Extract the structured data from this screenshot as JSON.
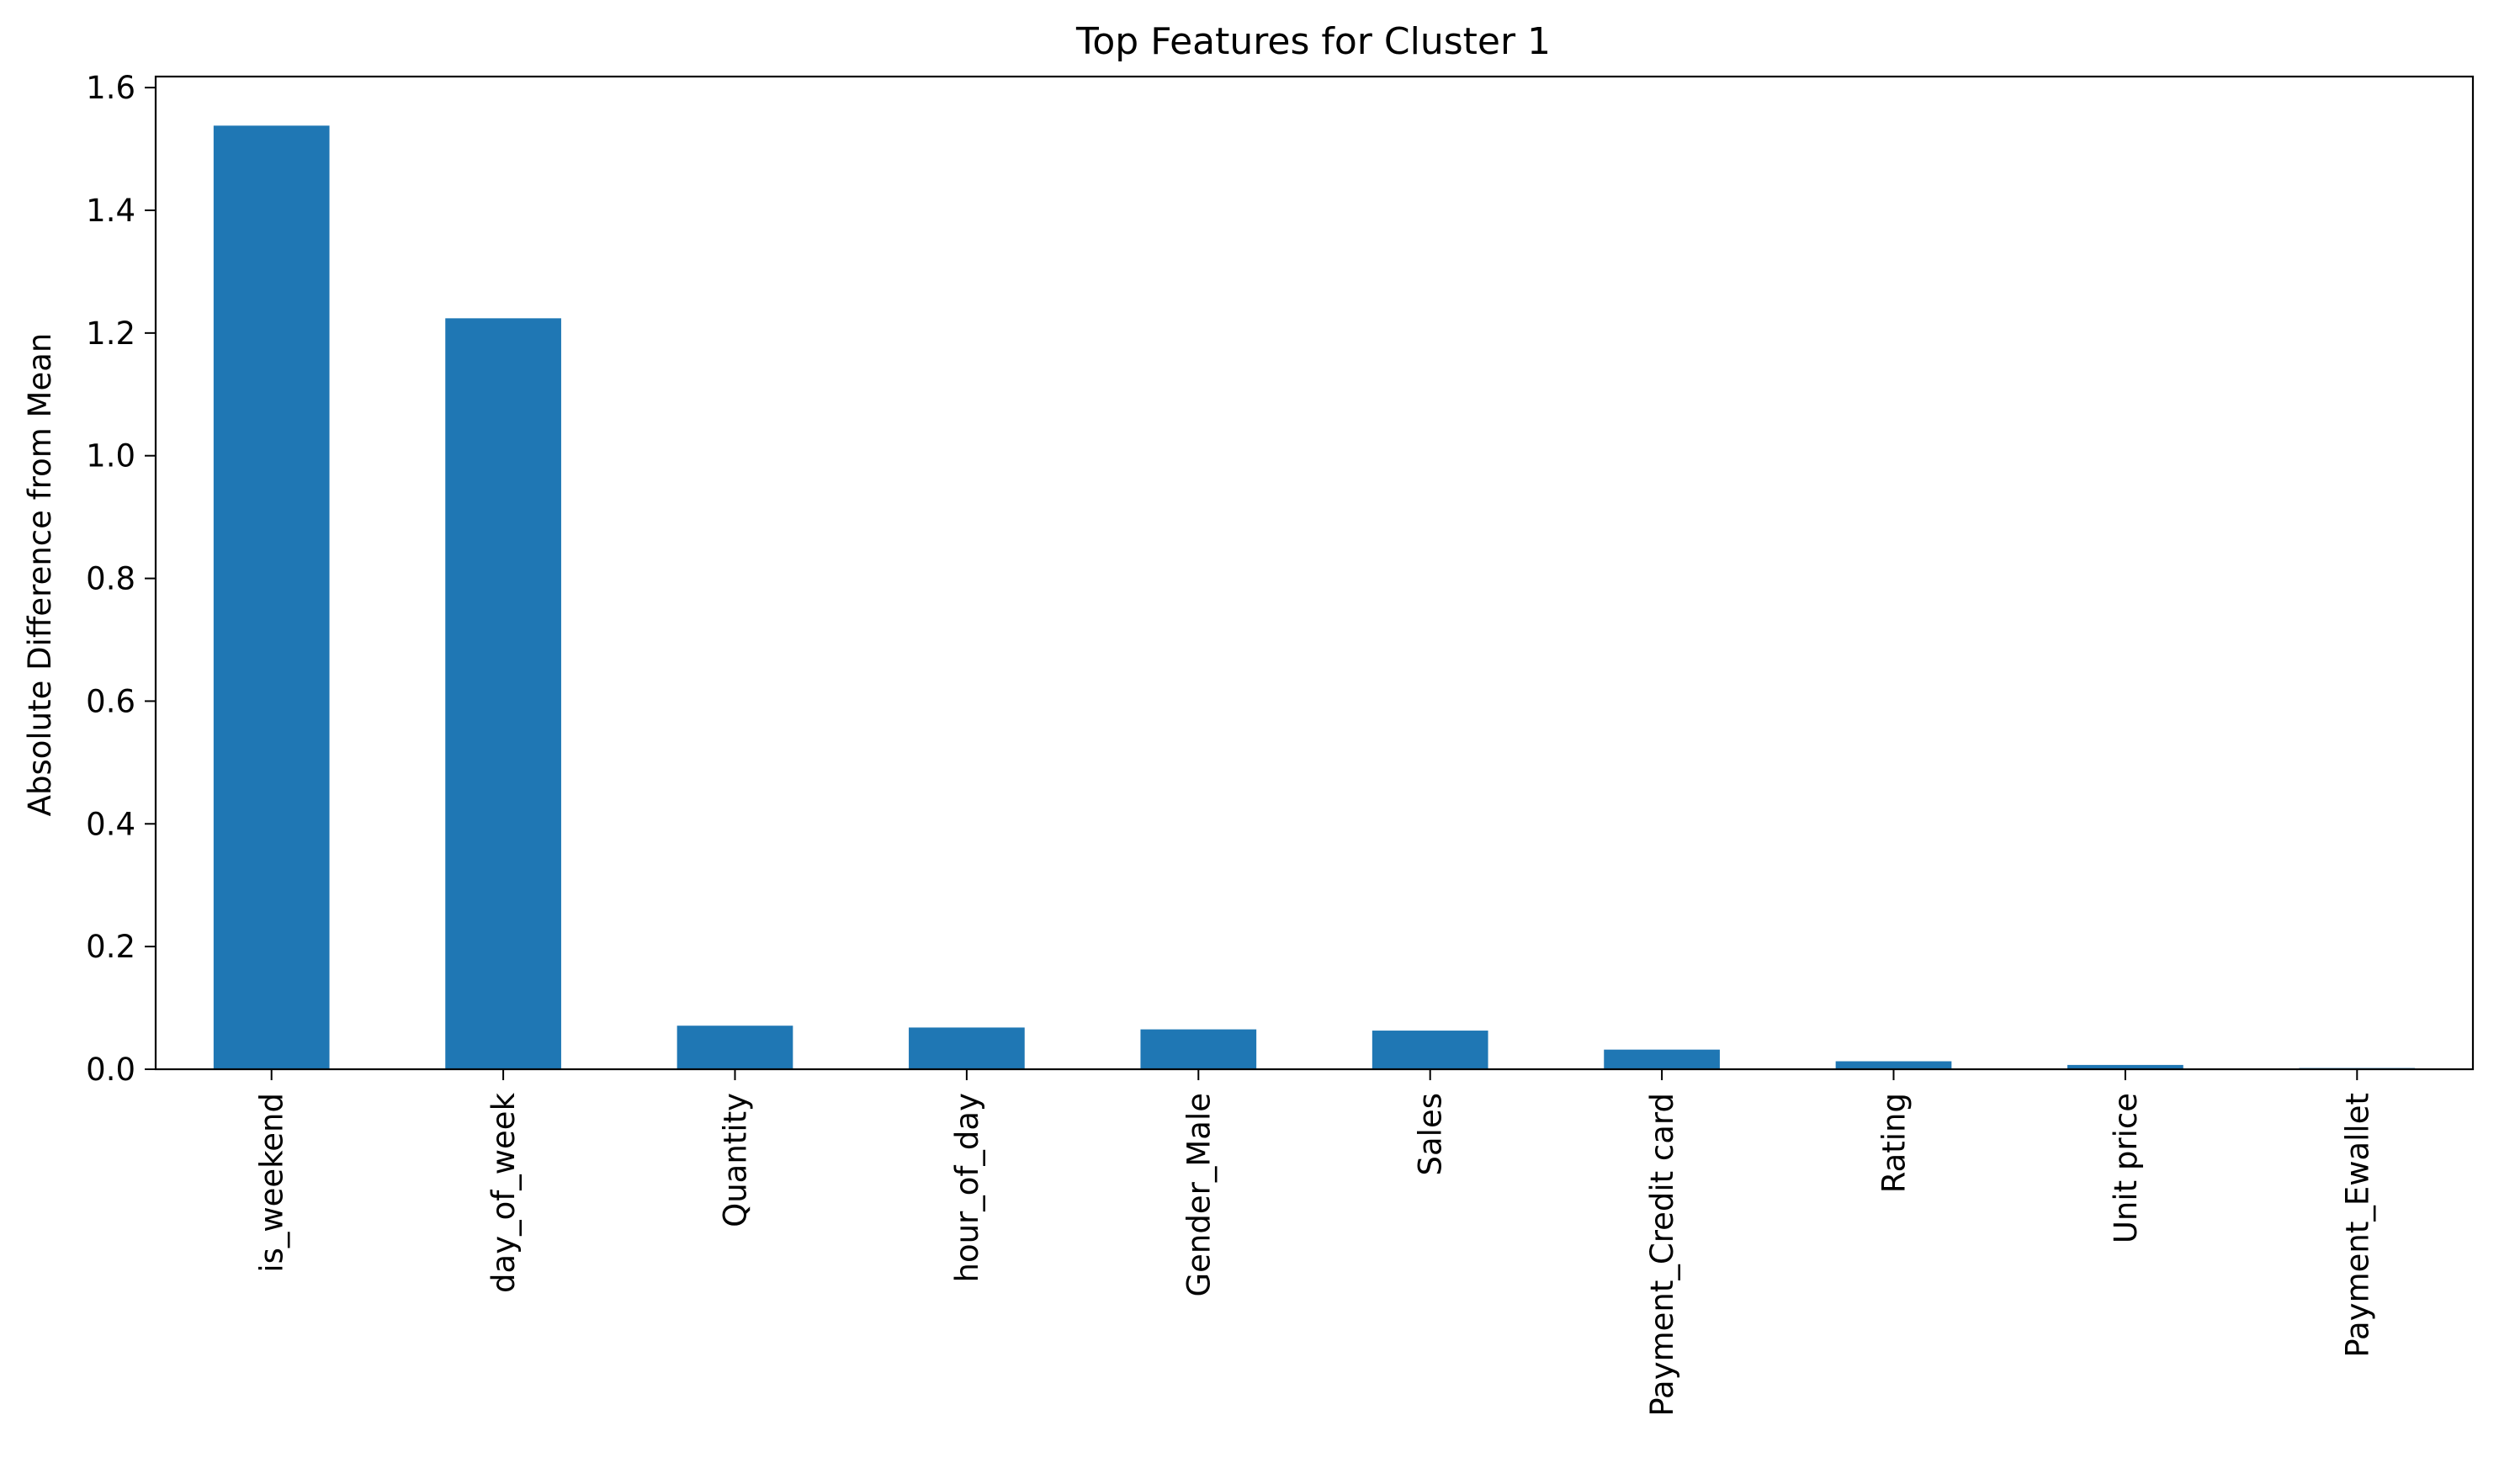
{
  "chart_data": {
    "type": "bar",
    "title": "Top Features for Cluster 1",
    "xlabel": "",
    "ylabel": "Absolute Difference from Mean",
    "categories": [
      "is_weekend",
      "day_of_week",
      "Quantity",
      "hour_of_day",
      "Gender_Male",
      "Sales",
      "Payment_Credit card",
      "Rating",
      "Unit price",
      "Payment_Ewallet"
    ],
    "values": [
      1.538,
      1.224,
      0.071,
      0.068,
      0.065,
      0.063,
      0.032,
      0.013,
      0.007,
      0.002
    ],
    "ylim": [
      0,
      1.618
    ],
    "yticks": [
      0.0,
      0.2,
      0.4,
      0.6,
      0.8,
      1.0,
      1.2,
      1.4,
      1.6
    ],
    "ytick_labels": [
      "0.0",
      "0.2",
      "0.4",
      "0.6",
      "0.8",
      "1.0",
      "1.2",
      "1.4",
      "1.6"
    ],
    "bar_color": "#1f77b4",
    "grid": false,
    "legend": "none"
  }
}
